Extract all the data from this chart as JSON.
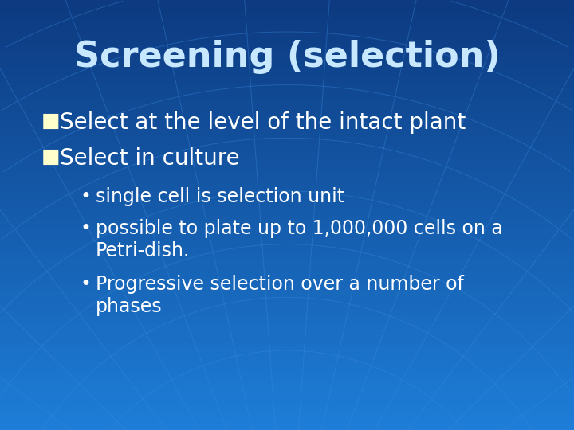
{
  "title": "Screening (selection)",
  "title_color": "#c8e8ff",
  "title_fontsize": 32,
  "bg_color": "#1a6cc8",
  "bullet1": "Select at the level of the intact plant",
  "bullet2": "Select in culture",
  "sub1": "single cell is selection unit",
  "sub2": "possible to plate up to 1,000,000 cells on a\nPetri-dish.",
  "sub3": "Progressive selection over a number of\nphases",
  "text_color": "#ffffff",
  "bullet_sq_color": "#ffffcc",
  "bullet_fontsize": 20,
  "sub_fontsize": 17,
  "fig_width": 7.2,
  "fig_height": 5.4,
  "dpi": 100
}
